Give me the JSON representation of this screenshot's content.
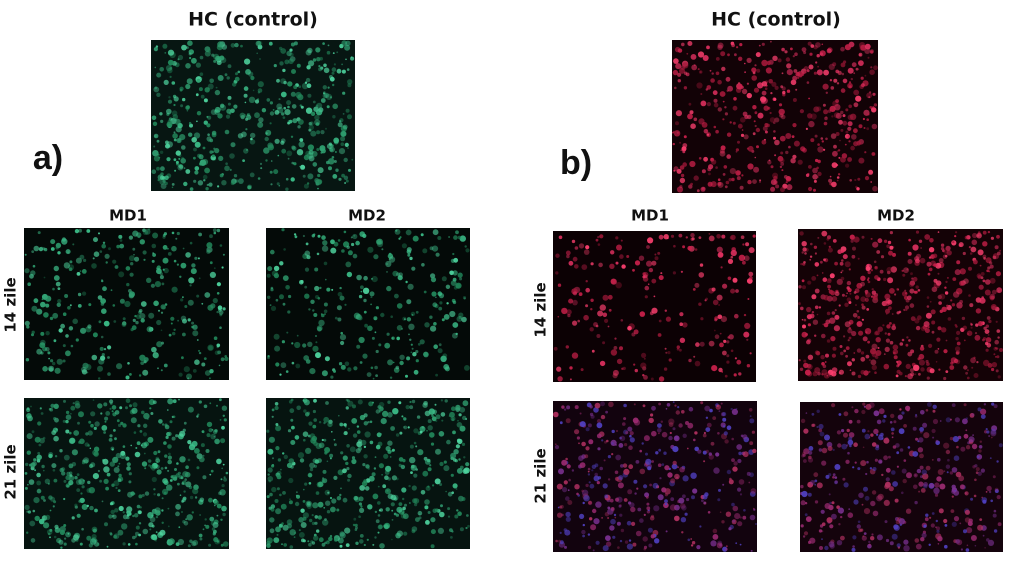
{
  "panels": [
    {
      "label": "a)",
      "control_title": "HC (control)",
      "columns": [
        "MD1",
        "MD2"
      ],
      "rows": [
        "14 zile",
        "21 zile"
      ]
    },
    {
      "label": "b)",
      "control_title": "HC (control)",
      "columns": [
        "MD1",
        "MD2"
      ],
      "rows": [
        "14 zile",
        "21 zile"
      ]
    }
  ]
}
